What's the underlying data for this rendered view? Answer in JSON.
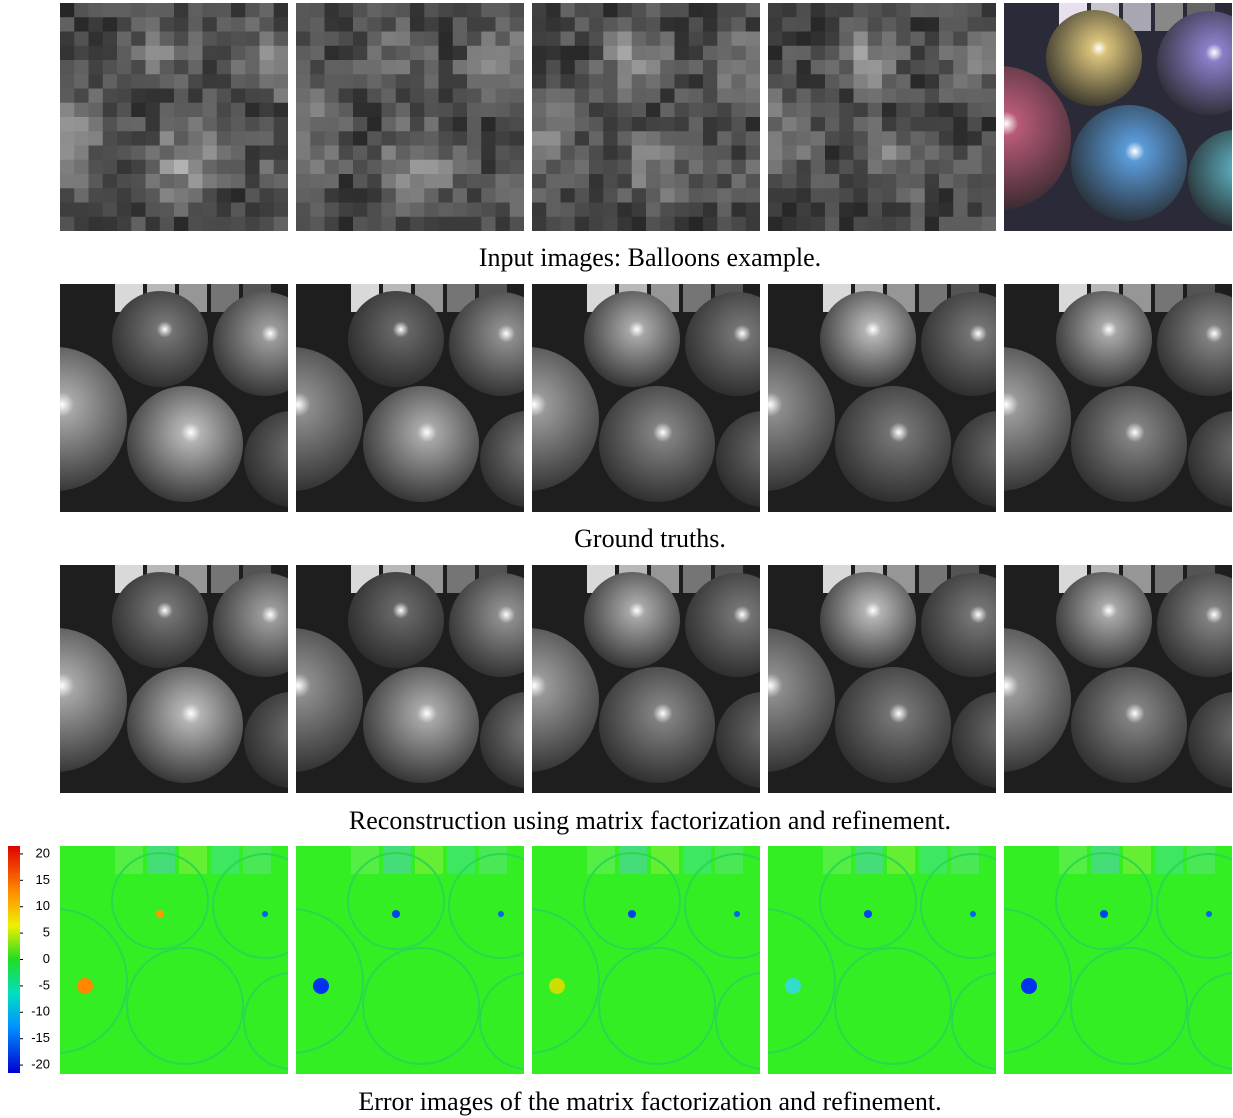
{
  "figure": {
    "rows": [
      {
        "caption": "Input images: Balloons example."
      },
      {
        "caption": "Ground truths."
      },
      {
        "caption": "Reconstruction using matrix factorization and refinement."
      },
      {
        "caption": "Error images of the matrix factorization and refinement."
      }
    ],
    "colorbar": {
      "lim": [
        -21.5,
        21.5
      ],
      "ticks": [
        20,
        15,
        10,
        5,
        0,
        -5,
        -10,
        -15,
        -20
      ]
    }
  }
}
